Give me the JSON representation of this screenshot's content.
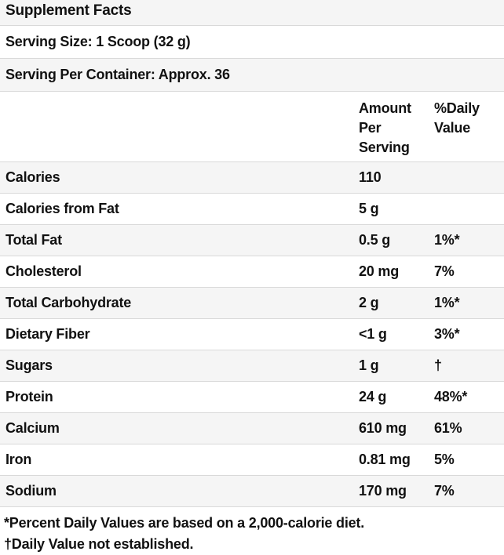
{
  "header": {
    "title": "Supplement Facts"
  },
  "serving_info": {
    "serving_size": "Serving Size: 1 Scoop (32 g)",
    "servings_per_container": "Serving Per Container: Approx. 36"
  },
  "columns": {
    "amount_header": "Amount Per Serving",
    "daily_value_header": "%Daily Value"
  },
  "table": {
    "rows": [
      {
        "label": "Calories",
        "amount": "110",
        "dv": ""
      },
      {
        "label": "Calories from Fat",
        "amount": "5 g",
        "dv": ""
      },
      {
        "label": "Total Fat",
        "amount": "0.5 g",
        "dv": "1%*"
      },
      {
        "label": "Cholesterol",
        "amount": "20 mg",
        "dv": "7%"
      },
      {
        "label": "Total Carbohydrate",
        "amount": "2 g",
        "dv": "1%*"
      },
      {
        "label": "Dietary Fiber",
        "amount": "<1 g",
        "dv": "3%*"
      },
      {
        "label": "Sugars",
        "amount": "1 g",
        "dv": "†"
      },
      {
        "label": "Protein",
        "amount": "24 g",
        "dv": "48%*"
      },
      {
        "label": "Calcium",
        "amount": "610 mg",
        "dv": "61%"
      },
      {
        "label": "Iron",
        "amount": "0.81 mg",
        "dv": "5%"
      },
      {
        "label": "Sodium",
        "amount": "170 mg",
        "dv": "7%"
      }
    ]
  },
  "footnotes": {
    "percent_daily_values": "*Percent Daily Values are based on a 2,000-calorie diet.",
    "daily_value_not_established": "†Daily Value not established."
  },
  "colors": {
    "stripe_background": "#f5f5f5",
    "divider": "#d9d9d9",
    "text": "#111111"
  }
}
